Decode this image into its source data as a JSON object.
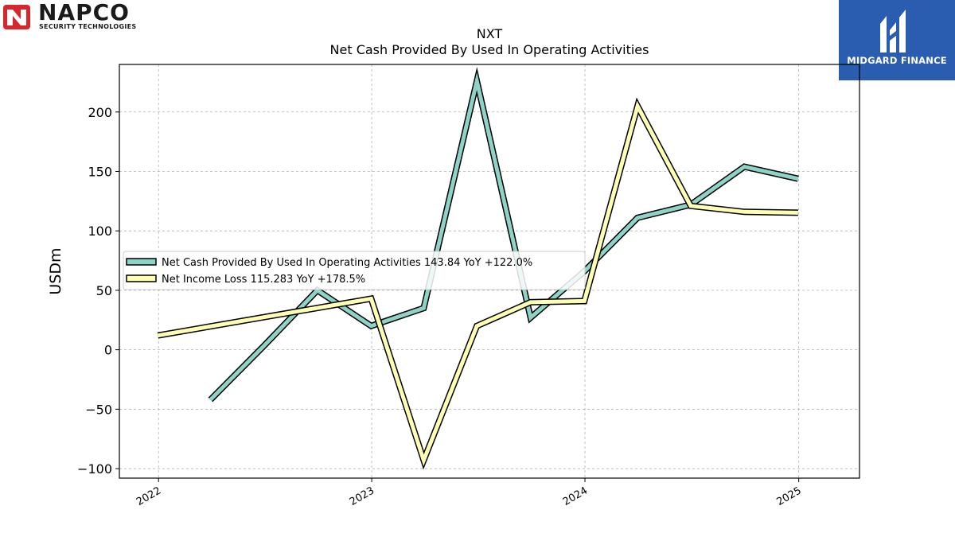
{
  "logos": {
    "left_brand": "NAPCO",
    "left_tagline": "SECURITY TECHNOLOGIES",
    "right_brand": "MIDGARD FINANCE"
  },
  "chart_data": {
    "type": "line",
    "title": "NXT",
    "subtitle": "Net Cash Provided By Used In Operating Activities",
    "ylabel": "USDm",
    "xlabel": "",
    "ylim": [
      -108,
      240
    ],
    "yticks": [
      -100,
      -50,
      0,
      50,
      100,
      150,
      200
    ],
    "ytick_labels": [
      "−100",
      "−50",
      "0",
      "50",
      "100",
      "150",
      "200"
    ],
    "xlim": [
      "2021-10-26",
      "2025-04-15"
    ],
    "xticks": [
      "2022-01-01",
      "2023-01-01",
      "2024-01-01",
      "2025-01-01"
    ],
    "xtick_labels": [
      "2022",
      "2023",
      "2024",
      "2025"
    ],
    "grid": true,
    "legend_position": "center-left",
    "series": [
      {
        "name": "Net Cash Provided By Used In Operating Activities  143.84 YoY +122.0%",
        "color": "#8dd3c7",
        "x": [
          "2022-03-31",
          "2022-06-30",
          "2022-09-30",
          "2022-12-31",
          "2023-03-31",
          "2023-06-30",
          "2023-09-30",
          "2023-12-31",
          "2024-03-31",
          "2024-06-30",
          "2024-09-30",
          "2024-12-31"
        ],
        "y": [
          -42,
          3,
          50,
          20,
          35,
          226,
          27,
          66,
          111,
          122,
          154,
          143.84
        ]
      },
      {
        "name": "Net Income Loss  115.283 YoY +178.5%",
        "color": "#ffffb3",
        "x": [
          "2021-12-31",
          "2022-12-31",
          "2023-03-31",
          "2023-06-30",
          "2023-09-30",
          "2023-12-31",
          "2024-03-31",
          "2024-06-30",
          "2024-09-30",
          "2024-12-31"
        ],
        "y": [
          12,
          43,
          -93,
          20,
          40,
          41,
          205,
          121,
          116,
          115.283
        ]
      }
    ]
  }
}
